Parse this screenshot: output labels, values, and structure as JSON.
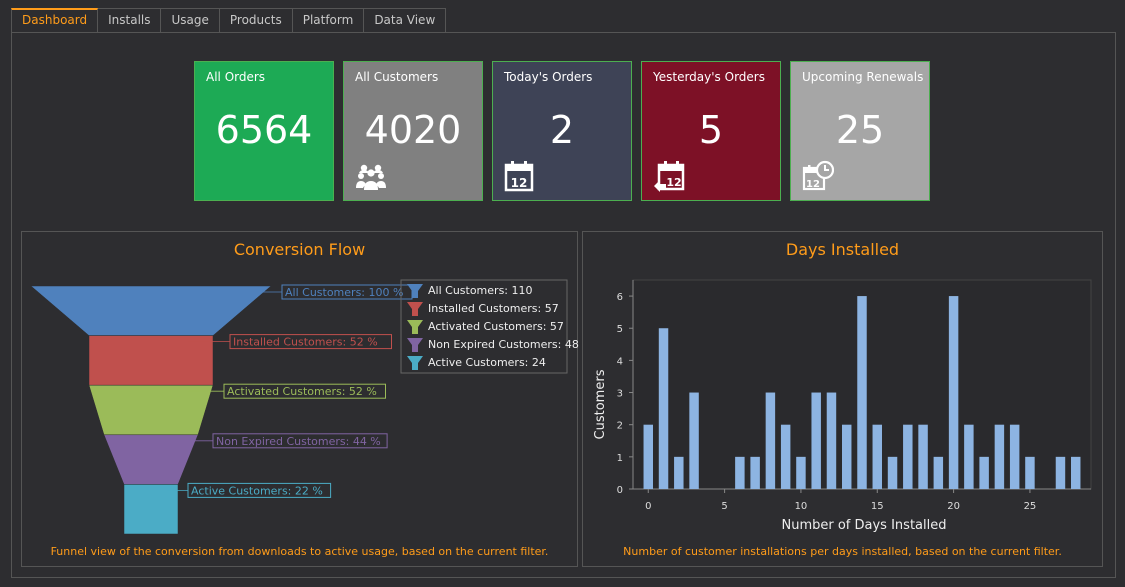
{
  "tabs": [
    {
      "label": "Dashboard",
      "active": true
    },
    {
      "label": "Installs",
      "active": false
    },
    {
      "label": "Usage",
      "active": false
    },
    {
      "label": "Products",
      "active": false
    },
    {
      "label": "Platform",
      "active": false
    },
    {
      "label": "Data View",
      "active": false
    }
  ],
  "tiles": [
    {
      "label": "All Orders",
      "value": "6564",
      "color": "#1daa55",
      "icon": "none"
    },
    {
      "label": "All Customers",
      "value": "4020",
      "color": "#808080",
      "icon": "people-icon"
    },
    {
      "label": "Today's Orders",
      "value": "2",
      "color": "#3e4356",
      "icon": "calendar-icon"
    },
    {
      "label": "Yesterday's Orders",
      "value": "5",
      "color": "#7d1126",
      "icon": "calendar-back-icon"
    },
    {
      "label": "Upcoming Renewals",
      "value": "25",
      "color": "#a6a6a6",
      "icon": "calendar-clock-icon"
    }
  ],
  "funnel": {
    "title": "Conversion Flow",
    "caption": "Funnel view of the conversion from downloads to active usage, based on the current filter.",
    "stages": [
      {
        "name": "All Customers",
        "count": "110",
        "percent": "100 %",
        "percent_value": 100,
        "color": "#4f81bd"
      },
      {
        "name": "Installed Customers",
        "count": "57",
        "percent": "52 %",
        "percent_value": 52,
        "color": "#c0504d"
      },
      {
        "name": "Activated Customers",
        "count": "57",
        "percent": "52 %",
        "percent_value": 52,
        "color": "#9bbb59"
      },
      {
        "name": "Non Expired Customers",
        "count": "48",
        "percent": "44 %",
        "percent_value": 44,
        "color": "#8064a2"
      },
      {
        "name": "Active Customers",
        "count": "24",
        "percent": "22 %",
        "percent_value": 22,
        "color": "#4bacc6"
      }
    ]
  },
  "chart_data": {
    "type": "bar",
    "title": "Days Installed",
    "caption": "Number of customer installations per days installed, based on the current filter.",
    "xlabel": "Number of Days Installed",
    "ylabel": "Customers",
    "x": [
      0,
      1,
      2,
      3,
      4,
      5,
      6,
      7,
      8,
      9,
      10,
      11,
      12,
      13,
      14,
      15,
      16,
      17,
      18,
      19,
      20,
      21,
      22,
      23,
      24,
      25,
      26,
      27,
      28
    ],
    "values": [
      2,
      5,
      1,
      3,
      0,
      0,
      1,
      1,
      3,
      2,
      1,
      3,
      3,
      2,
      6,
      2,
      1,
      2,
      2,
      1,
      6,
      2,
      1,
      2,
      2,
      1,
      0,
      1,
      1
    ],
    "xticks": [
      0,
      5,
      10,
      15,
      20,
      25
    ],
    "yticks": [
      0,
      1,
      2,
      3,
      4,
      5,
      6
    ],
    "xlim": [
      -1,
      29
    ],
    "ylim": [
      0,
      6.5
    ],
    "bar_color": "#8db4e2",
    "grid": false,
    "legend": "none"
  }
}
